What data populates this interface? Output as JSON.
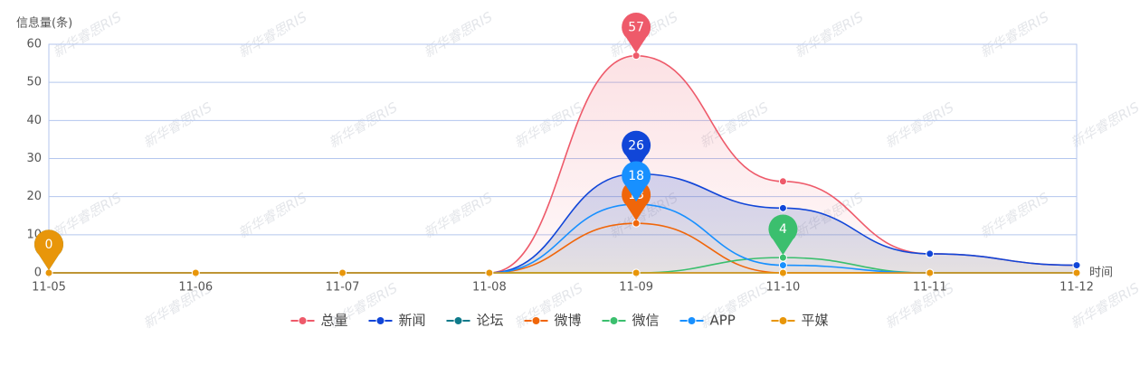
{
  "chart_data": {
    "type": "line",
    "y_label": "信息量(条)",
    "x_label": "时间",
    "watermark": "新华睿思RIS",
    "categories": [
      "11-05",
      "11-06",
      "11-07",
      "11-08",
      "11-09",
      "11-10",
      "11-11",
      "11-12"
    ],
    "ylim": [
      0,
      60
    ],
    "yticks": [
      0,
      10,
      20,
      30,
      40,
      50,
      60
    ],
    "grid": true,
    "legend": "bottom",
    "smooth": true,
    "max_pin": true,
    "series": [
      {
        "name": "总量",
        "color": "#ee5a6a",
        "area": true,
        "values": [
          0,
          0,
          0,
          0,
          57,
          24,
          5,
          2
        ]
      },
      {
        "name": "新闻",
        "color": "#1146d8",
        "area": true,
        "values": [
          0,
          0,
          0,
          0,
          26,
          17,
          5,
          2
        ]
      },
      {
        "name": "论坛",
        "color": "#0e7a8a",
        "values": [
          0,
          0,
          0,
          0,
          0,
          0,
          0,
          0
        ]
      },
      {
        "name": "微博",
        "color": "#f0660a",
        "values": [
          0,
          0,
          0,
          0,
          13,
          0,
          0,
          0
        ]
      },
      {
        "name": "微信",
        "color": "#3bbf6e",
        "values": [
          0,
          0,
          0,
          0,
          0,
          4,
          0,
          0
        ]
      },
      {
        "name": "APP",
        "color": "#1890ff",
        "values": [
          0,
          0,
          0,
          0,
          18,
          2,
          0,
          0
        ]
      },
      {
        "name": "平媒",
        "color": "#e8960a",
        "values": [
          0,
          0,
          0,
          0,
          0,
          0,
          0,
          0
        ]
      }
    ]
  }
}
